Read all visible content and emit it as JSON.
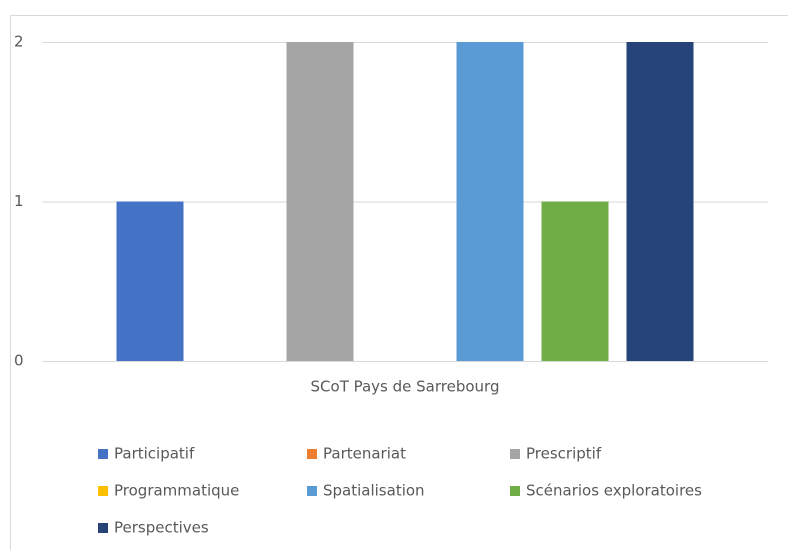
{
  "chart_data": {
    "type": "bar",
    "categories": [
      "SCoT Pays de Sarrebourg"
    ],
    "series": [
      {
        "name": "Participatif",
        "color": "#4472c4",
        "values": [
          1
        ]
      },
      {
        "name": "Partenariat",
        "color": "#ed7d31",
        "values": [
          0
        ]
      },
      {
        "name": "Prescriptif",
        "color": "#a5a5a5",
        "values": [
          2
        ]
      },
      {
        "name": "Programmatique",
        "color": "#ffc000",
        "values": [
          0
        ]
      },
      {
        "name": "Spatialisation",
        "color": "#5b9bd5",
        "values": [
          2
        ]
      },
      {
        "name": "Scénarios exploratoires",
        "color": "#70ad47",
        "values": [
          1
        ]
      },
      {
        "name": "Perspectives",
        "color": "#264478",
        "values": [
          2
        ]
      }
    ],
    "ylim": [
      0,
      2
    ],
    "yticks": [
      0,
      1,
      2
    ],
    "grid": true,
    "legend": "bottom"
  }
}
